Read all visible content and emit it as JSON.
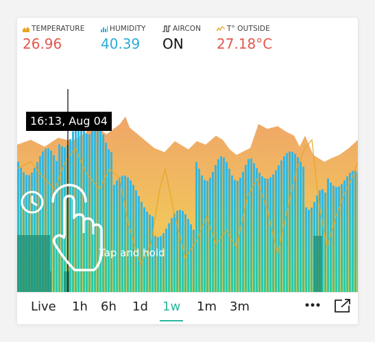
{
  "legend": [
    {
      "label": "TEMPERATURE",
      "value": "26.96",
      "color": "#e2574b",
      "icon": "temperature-chart-icon"
    },
    {
      "label": "HUMIDITY",
      "value": "40.39",
      "color": "#27abd8",
      "icon": "humidity-chart-icon"
    },
    {
      "label": "AIRCON",
      "value": "ON",
      "color": "#111111",
      "icon": "aircon-step-icon"
    },
    {
      "label": "T° OUTSIDE",
      "value": "27.18°C",
      "color": "#e2574b",
      "icon": "outside-temperature-icon"
    }
  ],
  "tooltip": {
    "time": "16:13, Aug 04"
  },
  "hint": {
    "text": "Tap and hold"
  },
  "tabs": [
    {
      "label": "Live",
      "active": false
    },
    {
      "label": "1h",
      "active": false
    },
    {
      "label": "6h",
      "active": false
    },
    {
      "label": "1d",
      "active": false
    },
    {
      "label": "1w",
      "active": true
    },
    {
      "label": "1m",
      "active": false
    },
    {
      "label": "3m",
      "active": false
    }
  ],
  "colors": {
    "accent": "#2ab79f",
    "temperature_fill": "#f0a868",
    "humidity_bars": "#36b9e0",
    "aircon_fill": "#27b7a0",
    "outside_line": "#e6a622"
  }
}
